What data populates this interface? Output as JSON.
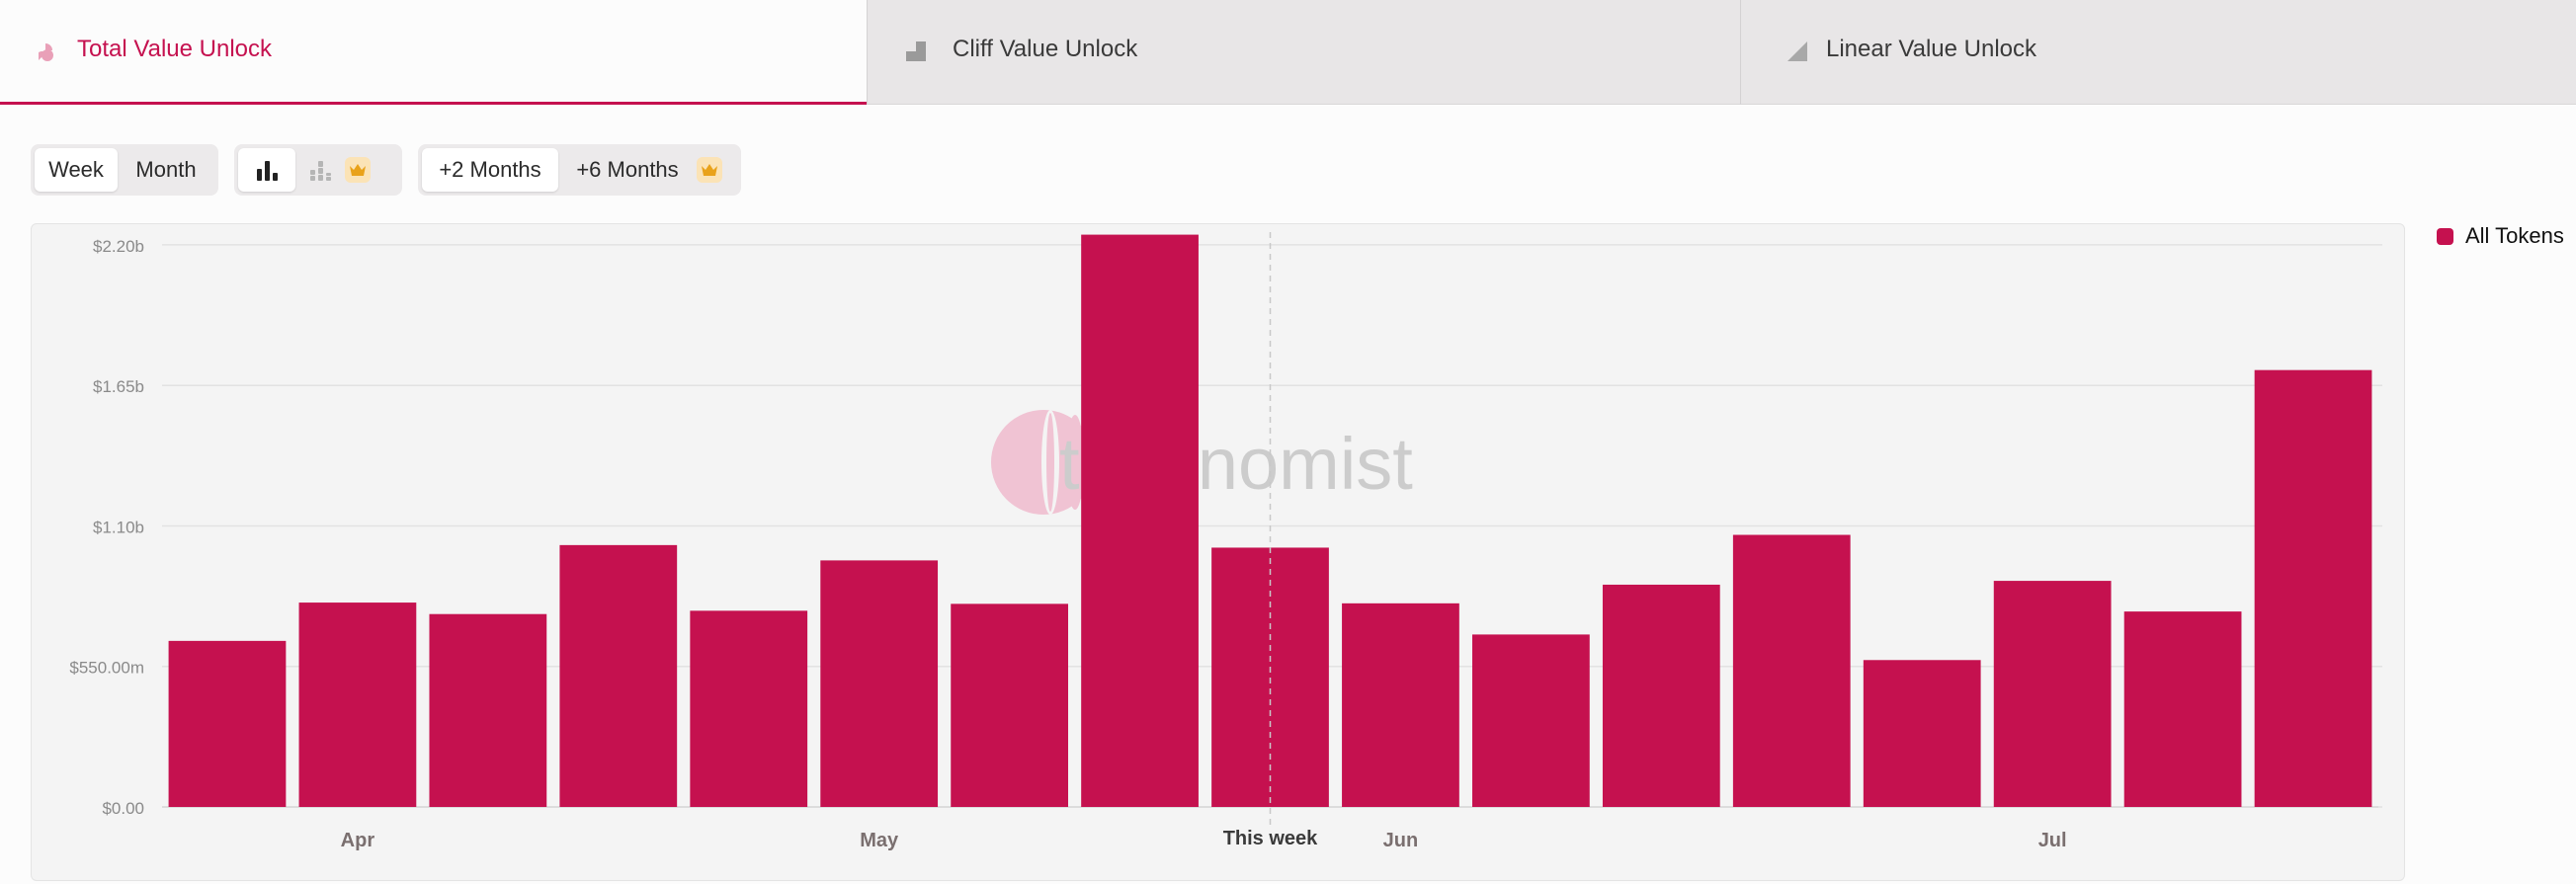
{
  "tabs": [
    {
      "label": "Total Value Unlock",
      "icon": "pie-icon",
      "active": true
    },
    {
      "label": "Cliff Value Unlock",
      "icon": "step-icon",
      "active": false
    },
    {
      "label": "Linear Value Unlock",
      "icon": "triangle-icon",
      "active": false
    }
  ],
  "controls": {
    "period": {
      "week": "Week",
      "month": "Month",
      "selected": "Week"
    },
    "chart_mode": {
      "bar_icon": "bar-chart-icon",
      "stacked_icon": "stacked-bar-icon",
      "premium_icon": "crown-icon"
    },
    "range": {
      "plus2": "+2 Months",
      "plus6": "+6 Months",
      "selected": "+2 Months"
    }
  },
  "colors": {
    "accent": "#c5114f",
    "crown": "#e9a21a"
  },
  "watermark": "tokenomist",
  "chart_data": {
    "type": "bar",
    "title": "",
    "xlabel": "",
    "ylabel": "",
    "ylim": [
      0,
      2250000000
    ],
    "y_ticks": [
      {
        "value": 0,
        "label": "$0.00"
      },
      {
        "value": 550000000,
        "label": "$550.00m"
      },
      {
        "value": 1100000000,
        "label": "$1.10b"
      },
      {
        "value": 1650000000,
        "label": "$1.65b"
      },
      {
        "value": 2200000000,
        "label": "$2.20b"
      }
    ],
    "x_ticks": [
      {
        "index": 1.5,
        "label": "Apr"
      },
      {
        "index": 5.5,
        "label": "May"
      },
      {
        "index": 9.5,
        "label": "Jun"
      },
      {
        "index": 14.5,
        "label": "Jul"
      }
    ],
    "marker": {
      "index": 8.5,
      "label": "This week"
    },
    "series": [
      {
        "name": "All Tokens",
        "color": "#c5114f",
        "values": [
          650000000,
          800000000,
          755000000,
          1025000000,
          768000000,
          965000000,
          795000000,
          2240000000,
          1015000000,
          797000000,
          675000000,
          870000000,
          1065000000,
          575000000,
          885000000,
          765000000,
          1710000000
        ]
      }
    ]
  }
}
